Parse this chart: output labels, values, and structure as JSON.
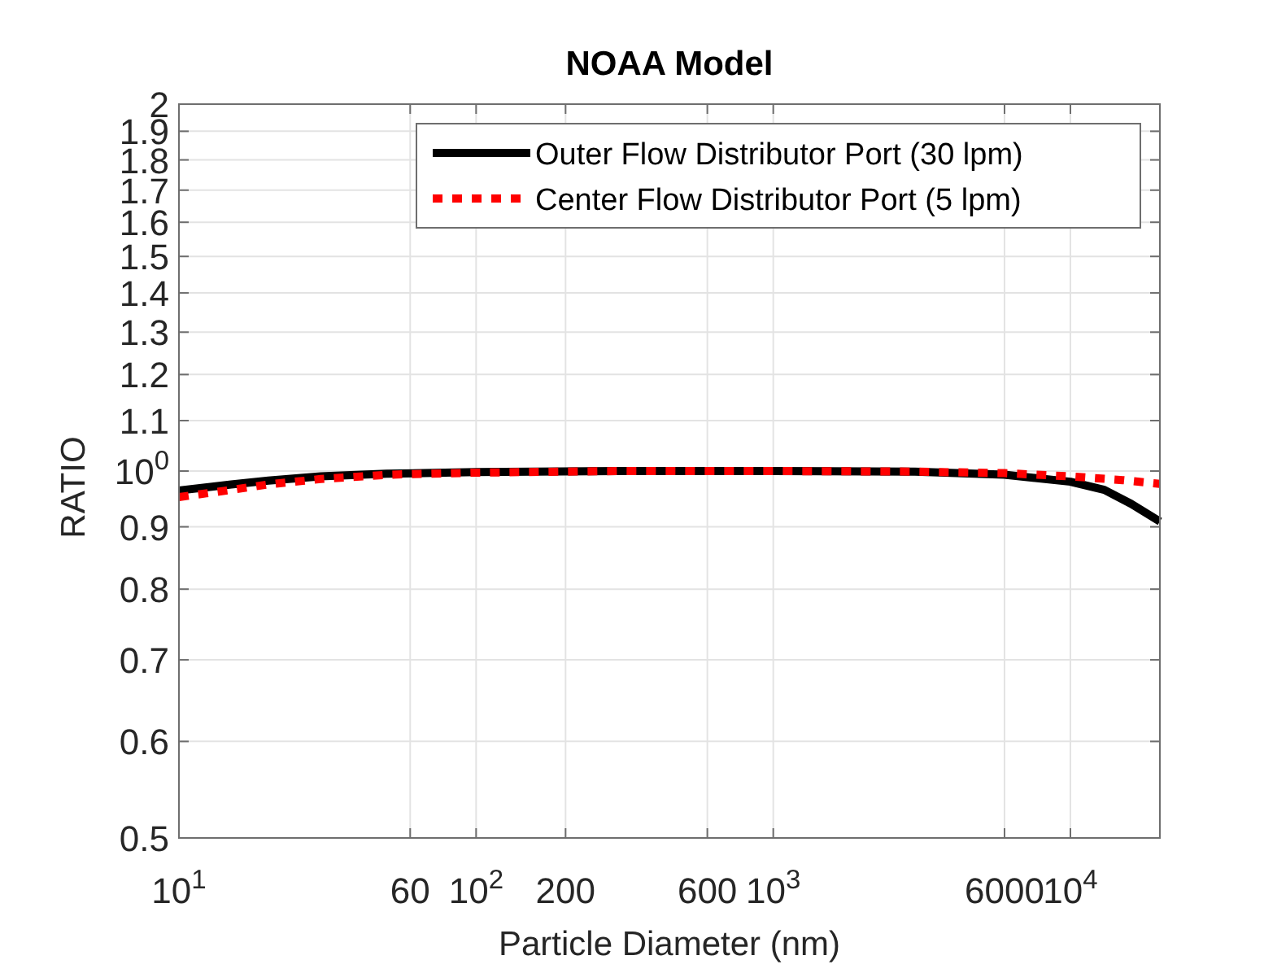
{
  "chart_data": {
    "type": "line",
    "title": "NOAA Model",
    "xlabel": "Particle Diameter (nm)",
    "ylabel": "RATIO",
    "log": "xy",
    "grid": true,
    "legend": "top right",
    "xlim": [
      10,
      20000
    ],
    "ylim": [
      0.5,
      2
    ],
    "xticks": [
      {
        "value": 10,
        "label": "10$^{1}$"
      },
      60,
      {
        "value": 100,
        "label": "10$^{2}$"
      },
      200,
      600,
      {
        "value": 1000,
        "label": "10$^{3}$"
      },
      6000,
      {
        "value": 10000,
        "label": "10$^{4}$"
      }
    ],
    "yticks": [
      0.5,
      0.6,
      0.7,
      0.8,
      0.9,
      {
        "value": 1,
        "label": "10$^{0}$"
      },
      1.1,
      1.2,
      1.3,
      1.4,
      1.5,
      1.6,
      1.7,
      1.8,
      1.9,
      2
    ],
    "series": [
      {
        "name": "Outer Flow Distributor Port (30 lpm)",
        "color": "#000000",
        "line_style": "solid",
        "x": [
          10,
          15,
          20,
          30,
          50,
          100,
          300,
          1000,
          3000,
          6000,
          10000,
          13000,
          16000,
          20000
        ],
        "values": [
          0.964,
          0.975,
          0.982,
          0.99,
          0.995,
          0.998,
          1.0,
          1.0,
          0.999,
          0.993,
          0.98,
          0.965,
          0.94,
          0.909
        ]
      },
      {
        "name": "Center Flow Distributor Port (5 lpm)",
        "color": "#ff0000",
        "line_style": "dotted",
        "x": [
          10,
          15,
          20,
          30,
          50,
          100,
          300,
          1000,
          3000,
          6000,
          10000,
          15000,
          20000
        ],
        "values": [
          0.952,
          0.965,
          0.975,
          0.985,
          0.993,
          0.997,
          1.0,
          1.0,
          0.999,
          0.996,
          0.99,
          0.983,
          0.976
        ]
      }
    ]
  }
}
